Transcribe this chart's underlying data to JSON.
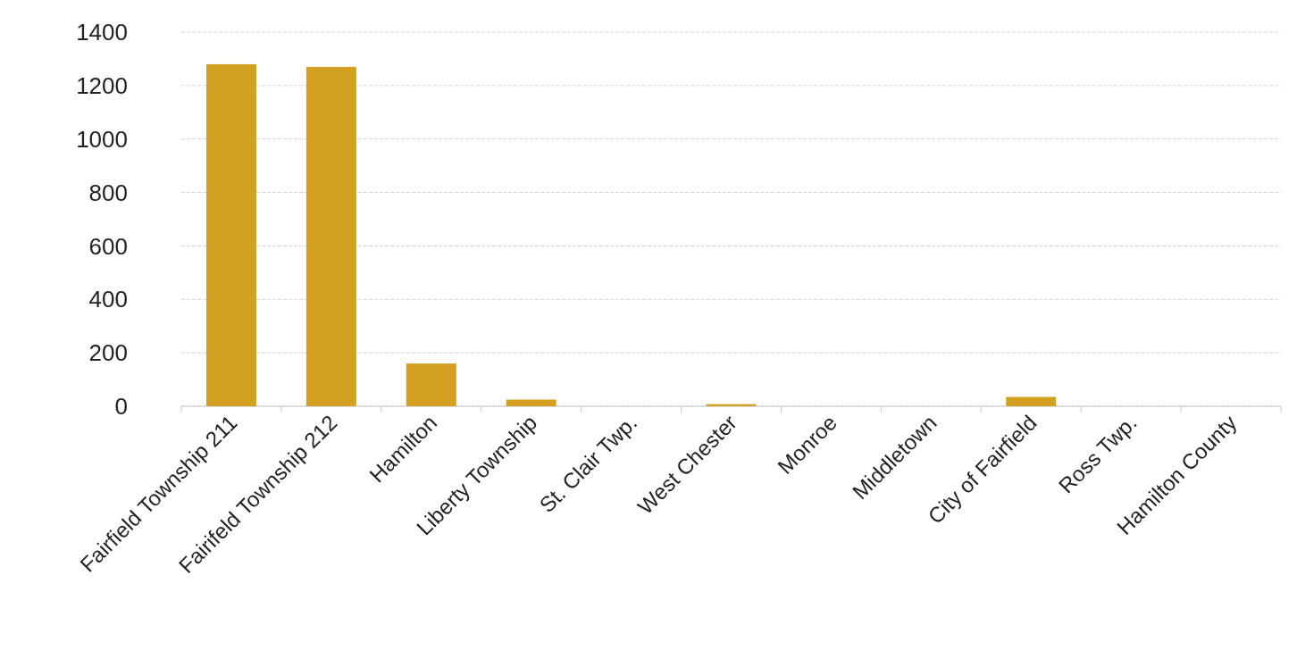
{
  "chart_data": {
    "type": "bar",
    "categories": [
      "Fairfield Township 211",
      "Fairifeld Township 212",
      "Hamilton",
      "Liberty Township",
      "St. Clair Twp.",
      "West Chester",
      "Monroe",
      "Middletown",
      "City of Fairfield",
      "Ross Twp.",
      "Hamilton County"
    ],
    "values": [
      1280,
      1270,
      160,
      25,
      0,
      8,
      0,
      0,
      35,
      0,
      0
    ],
    "color": "#d4a021",
    "ylim": [
      0,
      1400
    ],
    "yticks": [
      0,
      200,
      400,
      600,
      800,
      1000,
      1200,
      1400
    ],
    "grid": "y"
  }
}
